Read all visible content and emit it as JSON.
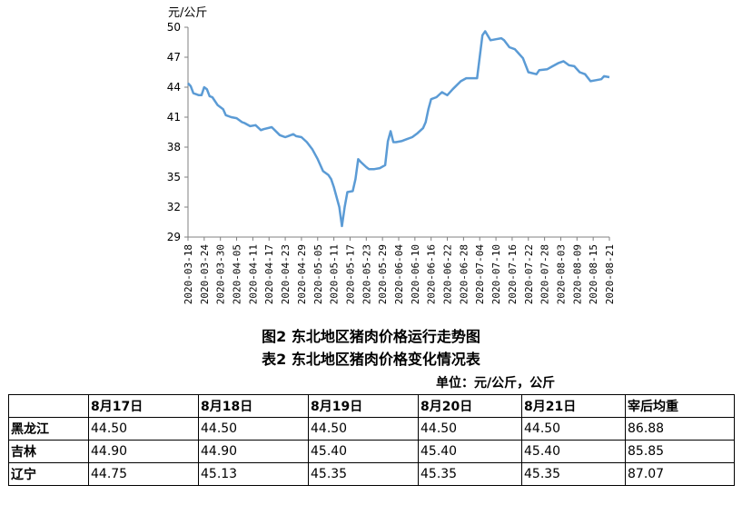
{
  "chart_data": {
    "type": "line",
    "ylabel": "元/公斤",
    "ylim": [
      29,
      50
    ],
    "yticks": [
      29,
      32,
      35,
      38,
      41,
      44,
      47,
      50
    ],
    "xticks": [
      "2020-03-18",
      "2020-03-24",
      "2020-03-30",
      "2020-04-05",
      "2020-04-11",
      "2020-04-17",
      "2020-04-23",
      "2020-04-29",
      "2020-05-05",
      "2020-05-11",
      "2020-05-17",
      "2020-05-23",
      "2020-05-29",
      "2020-06-04",
      "2020-06-10",
      "2020-06-16",
      "2020-06-22",
      "2020-06-28",
      "2020-07-04",
      "2020-07-10",
      "2020-07-16",
      "2020-07-22",
      "2020-07-28",
      "2020-08-03",
      "2020-08-09",
      "2020-08-15",
      "2020-08-21"
    ],
    "grid": false,
    "color": "#5B9BD5",
    "x": [
      "2020-03-18",
      "2020-03-19",
      "2020-03-20",
      "2020-03-22",
      "2020-03-23",
      "2020-03-24",
      "2020-03-25",
      "2020-03-26",
      "2020-03-27",
      "2020-03-29",
      "2020-03-31",
      "2020-04-01",
      "2020-04-03",
      "2020-04-05",
      "2020-04-07",
      "2020-04-08",
      "2020-04-10",
      "2020-04-12",
      "2020-04-14",
      "2020-04-15",
      "2020-04-18",
      "2020-04-21",
      "2020-04-22",
      "2020-04-23",
      "2020-04-24",
      "2020-04-26",
      "2020-04-27",
      "2020-04-29",
      "2020-05-01",
      "2020-05-03",
      "2020-05-04",
      "2020-05-05",
      "2020-05-07",
      "2020-05-09",
      "2020-05-10",
      "2020-05-11",
      "2020-05-12",
      "2020-05-13",
      "2020-05-14",
      "2020-05-15",
      "2020-05-16",
      "2020-05-18",
      "2020-05-19",
      "2020-05-20",
      "2020-05-21",
      "2020-05-23",
      "2020-05-24",
      "2020-05-26",
      "2020-05-28",
      "2020-05-30",
      "2020-05-31",
      "2020-06-01",
      "2020-06-02",
      "2020-06-03",
      "2020-06-05",
      "2020-06-07",
      "2020-06-09",
      "2020-06-11",
      "2020-06-13",
      "2020-06-14",
      "2020-06-15",
      "2020-06-16",
      "2020-06-18",
      "2020-06-20",
      "2020-06-22",
      "2020-06-24",
      "2020-06-27",
      "2020-06-29",
      "2020-07-01",
      "2020-07-03",
      "2020-07-05",
      "2020-07-06",
      "2020-07-08",
      "2020-07-10",
      "2020-07-12",
      "2020-07-13",
      "2020-07-15",
      "2020-07-17",
      "2020-07-18",
      "2020-07-20",
      "2020-07-22",
      "2020-07-25",
      "2020-07-26",
      "2020-07-29",
      "2020-07-31",
      "2020-08-02",
      "2020-08-04",
      "2020-08-06",
      "2020-08-08",
      "2020-08-10",
      "2020-08-12",
      "2020-08-14",
      "2020-08-16",
      "2020-08-18",
      "2020-08-19",
      "2020-08-21"
    ],
    "values": [
      44.4,
      44.1,
      43.4,
      43.2,
      43.2,
      44.0,
      43.8,
      43.1,
      43.0,
      42.2,
      41.8,
      41.2,
      41.0,
      40.9,
      40.5,
      40.4,
      40.1,
      40.2,
      39.7,
      39.8,
      40.0,
      39.2,
      39.1,
      39.0,
      39.1,
      39.3,
      39.1,
      39.0,
      38.5,
      37.8,
      37.3,
      36.8,
      35.6,
      35.2,
      34.8,
      34.0,
      33.0,
      32.0,
      30.1,
      32.0,
      33.5,
      33.6,
      34.8,
      36.8,
      36.5,
      36.0,
      35.8,
      35.8,
      35.9,
      36.2,
      38.6,
      39.6,
      38.5,
      38.5,
      38.6,
      38.8,
      39.0,
      39.4,
      39.9,
      40.5,
      41.8,
      42.8,
      43.0,
      43.5,
      43.2,
      43.8,
      44.6,
      44.9,
      44.9,
      44.9,
      49.2,
      49.6,
      48.7,
      48.8,
      48.9,
      48.7,
      48.0,
      47.8,
      47.5,
      46.9,
      45.5,
      45.3,
      45.7,
      45.8,
      46.1,
      46.4,
      46.6,
      46.2,
      46.1,
      45.5,
      45.3,
      44.6,
      44.7,
      44.8,
      45.1,
      45.0
    ]
  },
  "captions": {
    "figure": "图2 东北地区猪肉价格运行走势图",
    "table": "表2 东北地区猪肉价格变化情况表",
    "unit": "单位：元/公斤，公斤"
  },
  "table": {
    "columns": [
      "",
      "8月17日",
      "8月18日",
      "8月19日",
      "8月20日",
      "8月21日",
      "宰后均重"
    ],
    "rows": [
      [
        "黑龙江",
        "44.50",
        "44.50",
        "44.50",
        "44.50",
        "44.50",
        "86.88"
      ],
      [
        "吉林",
        "44.90",
        "44.90",
        "45.40",
        "45.40",
        "45.40",
        "85.85"
      ],
      [
        "辽宁",
        "44.75",
        "45.13",
        "45.35",
        "45.35",
        "45.35",
        "87.07"
      ]
    ]
  }
}
